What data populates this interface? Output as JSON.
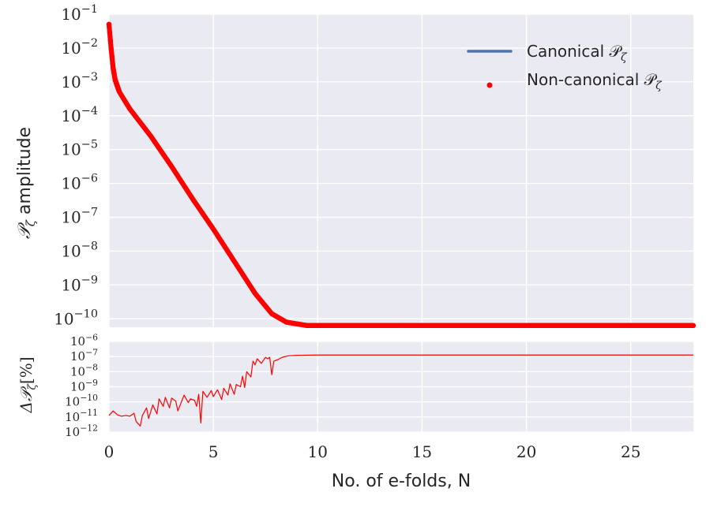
{
  "chart_data": [
    {
      "type": "scatter",
      "panel": "top",
      "ylabel": "𝒫",
      "ylabel_sub": "ζ",
      "ylabel_rest": " amplitude",
      "yscale": "log",
      "ylim_exp": [
        -10.25,
        -1
      ],
      "xlim": [
        0,
        28
      ],
      "grid": true,
      "legend_placement": "top-right",
      "y_ticks": [
        {
          "exp": -1,
          "label": "10",
          "sup": "−1"
        },
        {
          "exp": -2,
          "label": "10",
          "sup": "−2"
        },
        {
          "exp": -3,
          "label": "10",
          "sup": "−3"
        },
        {
          "exp": -4,
          "label": "10",
          "sup": "−4"
        },
        {
          "exp": -5,
          "label": "10",
          "sup": "−5"
        },
        {
          "exp": -6,
          "label": "10",
          "sup": "−6"
        },
        {
          "exp": -7,
          "label": "10",
          "sup": "−7"
        },
        {
          "exp": -8,
          "label": "10",
          "sup": "−8"
        },
        {
          "exp": -9,
          "label": "10",
          "sup": "−9"
        },
        {
          "exp": -10,
          "label": "10",
          "sup": "−10"
        }
      ],
      "series": [
        {
          "name": "Canonical 𝒫",
          "name_sub": "ζ",
          "kind": "line",
          "color": "#4c72b0",
          "points": [
            [
              0.0,
              -1.3
            ],
            [
              0.1,
              -2.0
            ],
            [
              0.2,
              -2.6
            ],
            [
              0.3,
              -2.95
            ],
            [
              0.5,
              -3.3
            ],
            [
              1.0,
              -3.8
            ],
            [
              2.0,
              -4.6
            ],
            [
              3.0,
              -5.5
            ],
            [
              4.0,
              -6.45
            ],
            [
              5.0,
              -7.35
            ],
            [
              6.0,
              -8.3
            ],
            [
              7.0,
              -9.25
            ],
            [
              7.8,
              -9.85
            ],
            [
              8.5,
              -10.1
            ],
            [
              9.5,
              -10.2
            ],
            [
              10.0,
              -10.2
            ],
            [
              28.0,
              -10.2
            ]
          ]
        },
        {
          "name": "Non-canonical 𝒫",
          "name_sub": "ζ",
          "kind": "scatter",
          "color": "#ff0000",
          "points": [
            [
              0.0,
              -1.3
            ],
            [
              0.1,
              -2.0
            ],
            [
              0.2,
              -2.6
            ],
            [
              0.3,
              -2.95
            ],
            [
              0.5,
              -3.3
            ],
            [
              1.0,
              -3.8
            ],
            [
              2.0,
              -4.6
            ],
            [
              3.0,
              -5.5
            ],
            [
              4.0,
              -6.45
            ],
            [
              5.0,
              -7.35
            ],
            [
              6.0,
              -8.3
            ],
            [
              7.0,
              -9.25
            ],
            [
              7.8,
              -9.85
            ],
            [
              8.5,
              -10.1
            ],
            [
              9.5,
              -10.2
            ],
            [
              10.0,
              -10.2
            ],
            [
              28.0,
              -10.2
            ]
          ]
        }
      ]
    },
    {
      "type": "line",
      "panel": "bottom",
      "ylabel": "Δ𝒫",
      "ylabel_sub": "ζ",
      "ylabel_rest": "[%]",
      "xlabel": "No. of e-folds, N",
      "yscale": "log",
      "ylim_exp": [
        -12,
        -6
      ],
      "xlim": [
        0,
        28
      ],
      "grid": true,
      "x_ticks": [
        {
          "value": 0,
          "label": "0"
        },
        {
          "value": 5,
          "label": "5"
        },
        {
          "value": 10,
          "label": "10"
        },
        {
          "value": 15,
          "label": "15"
        },
        {
          "value": 20,
          "label": "20"
        },
        {
          "value": 25,
          "label": "25"
        }
      ],
      "y_ticks": [
        {
          "exp": -6,
          "label": "10",
          "sup": "−6"
        },
        {
          "exp": -7,
          "label": "10",
          "sup": "−7"
        },
        {
          "exp": -8,
          "label": "10",
          "sup": "−8"
        },
        {
          "exp": -9,
          "label": "10",
          "sup": "−9"
        },
        {
          "exp": -10,
          "label": "10",
          "sup": "−10"
        },
        {
          "exp": -11,
          "label": "10",
          "sup": "−11"
        },
        {
          "exp": -12,
          "label": "10",
          "sup": "−12"
        }
      ],
      "series": [
        {
          "kind": "line",
          "color": "#ff0000",
          "points": [
            [
              0.0,
              -10.9
            ],
            [
              0.2,
              -10.6
            ],
            [
              0.4,
              -10.85
            ],
            [
              0.6,
              -10.95
            ],
            [
              0.8,
              -10.9
            ],
            [
              1.0,
              -10.95
            ],
            [
              1.2,
              -10.75
            ],
            [
              1.3,
              -11.3
            ],
            [
              1.5,
              -11.6
            ],
            [
              1.6,
              -10.9
            ],
            [
              1.8,
              -10.4
            ],
            [
              1.9,
              -11.1
            ],
            [
              2.1,
              -10.2
            ],
            [
              2.3,
              -10.8
            ],
            [
              2.4,
              -9.8
            ],
            [
              2.6,
              -10.3
            ],
            [
              2.7,
              -9.7
            ],
            [
              2.9,
              -10.4
            ],
            [
              3.0,
              -9.75
            ],
            [
              3.2,
              -9.95
            ],
            [
              3.3,
              -10.6
            ],
            [
              3.5,
              -9.9
            ],
            [
              3.6,
              -9.55
            ],
            [
              3.8,
              -10.05
            ],
            [
              3.9,
              -9.8
            ],
            [
              4.1,
              -9.9
            ],
            [
              4.2,
              -10.3
            ],
            [
              4.3,
              -9.5
            ],
            [
              4.4,
              -11.4
            ],
            [
              4.5,
              -9.3
            ],
            [
              4.7,
              -9.7
            ],
            [
              4.9,
              -9.25
            ],
            [
              5.0,
              -9.65
            ],
            [
              5.2,
              -9.2
            ],
            [
              5.4,
              -9.85
            ],
            [
              5.5,
              -9.1
            ],
            [
              5.7,
              -9.55
            ],
            [
              5.8,
              -8.8
            ],
            [
              6.0,
              -9.5
            ],
            [
              6.1,
              -8.85
            ],
            [
              6.3,
              -9.0
            ],
            [
              6.4,
              -8.3
            ],
            [
              6.5,
              -9.05
            ],
            [
              6.6,
              -8.0
            ],
            [
              6.8,
              -8.35
            ],
            [
              6.9,
              -7.3
            ],
            [
              7.0,
              -7.55
            ],
            [
              7.1,
              -7.15
            ],
            [
              7.3,
              -7.45
            ],
            [
              7.4,
              -7.25
            ],
            [
              7.5,
              -7.05
            ],
            [
              7.6,
              -7.15
            ],
            [
              7.7,
              -7.05
            ],
            [
              7.8,
              -8.2
            ],
            [
              7.9,
              -7.3
            ],
            [
              8.1,
              -7.2
            ],
            [
              8.3,
              -7.05
            ],
            [
              8.6,
              -6.95
            ],
            [
              9.0,
              -6.92
            ],
            [
              10.0,
              -6.9
            ],
            [
              28.0,
              -6.9
            ]
          ]
        }
      ]
    }
  ]
}
